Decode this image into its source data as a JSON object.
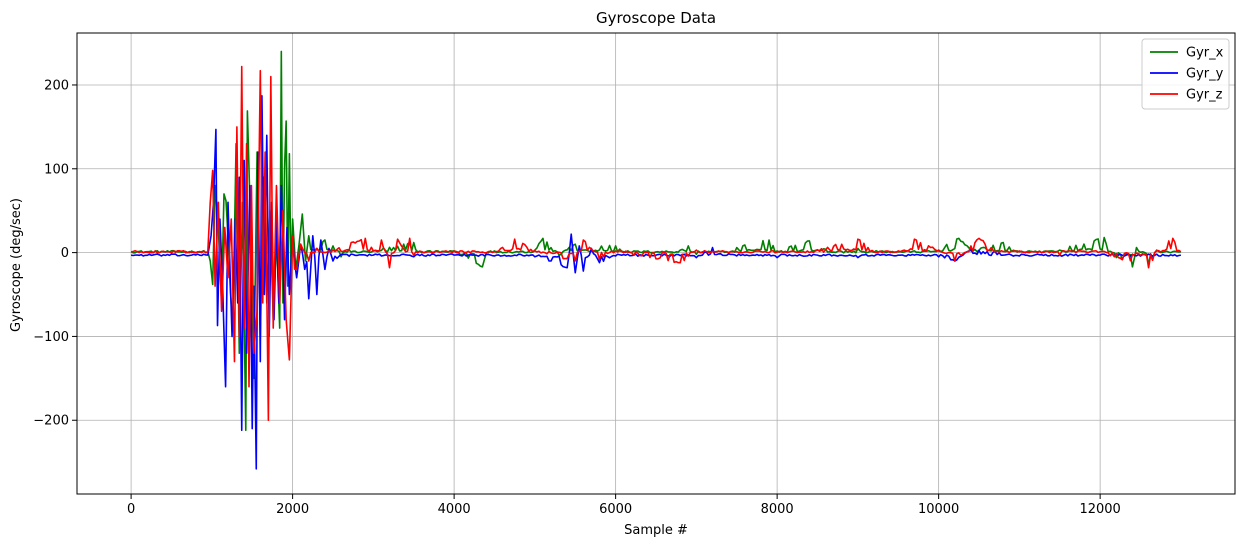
{
  "chart_data": {
    "type": "line",
    "title": "Gyroscope Data",
    "xlabel": "Sample #",
    "ylabel": "Gyroscope (deg/sec)",
    "xlim": [
      -670,
      13670
    ],
    "ylim": [
      -288,
      262
    ],
    "xticks": [
      0,
      2000,
      4000,
      6000,
      8000,
      10000,
      12000
    ],
    "yticks": [
      -200,
      -100,
      0,
      100,
      200
    ],
    "xtick_labels": [
      "0",
      "2000",
      "4000",
      "6000",
      "8000",
      "10000",
      "12000"
    ],
    "ytick_labels": [
      "−200",
      "−100",
      "0",
      "100",
      "200"
    ],
    "grid": true,
    "legend_position": "top-right",
    "n_samples": 13000,
    "series": [
      {
        "name": "Gyr_x",
        "color": "#008000",
        "baseline": 1,
        "points": [
          [
            0,
            1
          ],
          [
            950,
            1
          ],
          [
            980,
            -10
          ],
          [
            1010,
            -38
          ],
          [
            1040,
            80
          ],
          [
            1080,
            30
          ],
          [
            1120,
            -60
          ],
          [
            1150,
            70
          ],
          [
            1200,
            20
          ],
          [
            1260,
            -90
          ],
          [
            1300,
            130
          ],
          [
            1340,
            -120
          ],
          [
            1380,
            60
          ],
          [
            1420,
            -212
          ],
          [
            1440,
            169
          ],
          [
            1480,
            30
          ],
          [
            1520,
            -150
          ],
          [
            1560,
            120
          ],
          [
            1600,
            -100
          ],
          [
            1640,
            90
          ],
          [
            1680,
            -60
          ],
          [
            1720,
            50
          ],
          [
            1760,
            -80
          ],
          [
            1800,
            20
          ],
          [
            1840,
            -90
          ],
          [
            1860,
            240
          ],
          [
            1880,
            -60
          ],
          [
            1900,
            100
          ],
          [
            1920,
            157
          ],
          [
            1940,
            -40
          ],
          [
            1960,
            118
          ],
          [
            1980,
            -30
          ],
          [
            2000,
            40
          ],
          [
            2040,
            -20
          ],
          [
            2080,
            10
          ],
          [
            2120,
            46
          ],
          [
            2160,
            -10
          ],
          [
            2200,
            20
          ],
          [
            2300,
            5
          ],
          [
            2400,
            15
          ],
          [
            2500,
            8
          ],
          [
            2600,
            -5
          ],
          [
            2700,
            3
          ],
          [
            3000,
            2
          ],
          [
            3500,
            12
          ],
          [
            3600,
            0
          ],
          [
            4000,
            2
          ],
          [
            4350,
            -17
          ],
          [
            4400,
            0
          ],
          [
            5000,
            3
          ],
          [
            5100,
            17
          ],
          [
            5300,
            -3
          ],
          [
            5500,
            10
          ],
          [
            6000,
            8
          ],
          [
            6100,
            1
          ],
          [
            6800,
            3
          ],
          [
            6900,
            8
          ],
          [
            7000,
            -2
          ],
          [
            7500,
            6
          ],
          [
            7900,
            15
          ],
          [
            8000,
            2
          ],
          [
            8400,
            14
          ],
          [
            8600,
            4
          ],
          [
            9000,
            5
          ],
          [
            9500,
            1
          ],
          [
            10000,
            3
          ],
          [
            10250,
            17
          ],
          [
            10400,
            2
          ],
          [
            10800,
            12
          ],
          [
            11000,
            1
          ],
          [
            11500,
            3
          ],
          [
            12050,
            18
          ],
          [
            12100,
            1
          ],
          [
            12400,
            -17
          ],
          [
            12450,
            6
          ],
          [
            12600,
            -15
          ],
          [
            12700,
            3
          ],
          [
            13000,
            1
          ]
        ]
      },
      {
        "name": "Gyr_y",
        "color": "#0000ff",
        "baseline": -3,
        "points": [
          [
            0,
            -3
          ],
          [
            950,
            -3
          ],
          [
            990,
            20
          ],
          [
            1020,
            60
          ],
          [
            1050,
            147
          ],
          [
            1070,
            -87
          ],
          [
            1100,
            40
          ],
          [
            1130,
            -30
          ],
          [
            1170,
            -160
          ],
          [
            1200,
            60
          ],
          [
            1250,
            -100
          ],
          [
            1290,
            40
          ],
          [
            1320,
            -60
          ],
          [
            1340,
            90
          ],
          [
            1370,
            -212
          ],
          [
            1400,
            110
          ],
          [
            1430,
            -120
          ],
          [
            1470,
            80
          ],
          [
            1500,
            -210
          ],
          [
            1520,
            -40
          ],
          [
            1550,
            -258
          ],
          [
            1570,
            120
          ],
          [
            1600,
            -130
          ],
          [
            1620,
            187
          ],
          [
            1650,
            -50
          ],
          [
            1680,
            140
          ],
          [
            1710,
            -100
          ],
          [
            1740,
            60
          ],
          [
            1770,
            -80
          ],
          [
            1800,
            40
          ],
          [
            1830,
            -60
          ],
          [
            1860,
            80
          ],
          [
            1900,
            -80
          ],
          [
            1930,
            30
          ],
          [
            1960,
            -50
          ],
          [
            2000,
            20
          ],
          [
            2050,
            -30
          ],
          [
            2100,
            10
          ],
          [
            2150,
            -20
          ],
          [
            2200,
            -55
          ],
          [
            2250,
            20
          ],
          [
            2300,
            -50
          ],
          [
            2350,
            15
          ],
          [
            2400,
            -20
          ],
          [
            2450,
            5
          ],
          [
            2500,
            -10
          ],
          [
            2600,
            -2
          ],
          [
            3000,
            -3
          ],
          [
            3500,
            -5
          ],
          [
            4000,
            -3
          ],
          [
            4500,
            -4
          ],
          [
            5000,
            -5
          ],
          [
            5200,
            -10
          ],
          [
            5400,
            -18
          ],
          [
            5450,
            22
          ],
          [
            5500,
            -24
          ],
          [
            5550,
            8
          ],
          [
            5600,
            -22
          ],
          [
            5700,
            5
          ],
          [
            5800,
            -12
          ],
          [
            6000,
            -4
          ],
          [
            6500,
            -3
          ],
          [
            7000,
            -6
          ],
          [
            7200,
            6
          ],
          [
            7500,
            -4
          ],
          [
            8000,
            -6
          ],
          [
            8500,
            -3
          ],
          [
            9000,
            -6
          ],
          [
            9500,
            -3
          ],
          [
            10000,
            -5
          ],
          [
            10200,
            -10
          ],
          [
            10400,
            4
          ],
          [
            11000,
            -4
          ],
          [
            12000,
            -3
          ],
          [
            13000,
            -3
          ]
        ]
      },
      {
        "name": "Gyr_z",
        "color": "#ff0000",
        "baseline": 1,
        "points": [
          [
            0,
            1
          ],
          [
            950,
            1
          ],
          [
            980,
            60
          ],
          [
            1010,
            98
          ],
          [
            1040,
            -40
          ],
          [
            1080,
            60
          ],
          [
            1120,
            -70
          ],
          [
            1160,
            30
          ],
          [
            1200,
            -30
          ],
          [
            1240,
            40
          ],
          [
            1280,
            -130
          ],
          [
            1310,
            150
          ],
          [
            1340,
            -100
          ],
          [
            1370,
            222
          ],
          [
            1400,
            -90
          ],
          [
            1430,
            130
          ],
          [
            1460,
            -160
          ],
          [
            1490,
            80
          ],
          [
            1520,
            -120
          ],
          [
            1560,
            -70
          ],
          [
            1600,
            217
          ],
          [
            1630,
            -60
          ],
          [
            1660,
            120
          ],
          [
            1700,
            -200
          ],
          [
            1730,
            210
          ],
          [
            1760,
            -90
          ],
          [
            1800,
            80
          ],
          [
            1840,
            -60
          ],
          [
            1880,
            50
          ],
          [
            1920,
            -80
          ],
          [
            1960,
            -128
          ],
          [
            2000,
            20
          ],
          [
            2050,
            -20
          ],
          [
            2100,
            10
          ],
          [
            2200,
            -10
          ],
          [
            2300,
            5
          ],
          [
            2500,
            3
          ],
          [
            2900,
            17
          ],
          [
            3000,
            2
          ],
          [
            3100,
            15
          ],
          [
            3200,
            -18
          ],
          [
            3300,
            16
          ],
          [
            3400,
            1
          ],
          [
            3450,
            17
          ],
          [
            3500,
            -3
          ],
          [
            4000,
            2
          ],
          [
            4500,
            1
          ],
          [
            4750,
            16
          ],
          [
            5000,
            2
          ],
          [
            5500,
            -10
          ],
          [
            5600,
            15
          ],
          [
            5800,
            -8
          ],
          [
            6000,
            2
          ],
          [
            6800,
            -12
          ],
          [
            7000,
            3
          ],
          [
            8500,
            3
          ],
          [
            9000,
            16
          ],
          [
            9200,
            1
          ],
          [
            9500,
            2
          ],
          [
            9700,
            16
          ],
          [
            10000,
            2
          ],
          [
            10200,
            -10
          ],
          [
            10500,
            17
          ],
          [
            10700,
            1
          ],
          [
            11000,
            2
          ],
          [
            11500,
            -3
          ],
          [
            12000,
            1
          ],
          [
            12600,
            -18
          ],
          [
            12700,
            2
          ],
          [
            12900,
            17
          ],
          [
            13000,
            1
          ]
        ]
      }
    ]
  }
}
